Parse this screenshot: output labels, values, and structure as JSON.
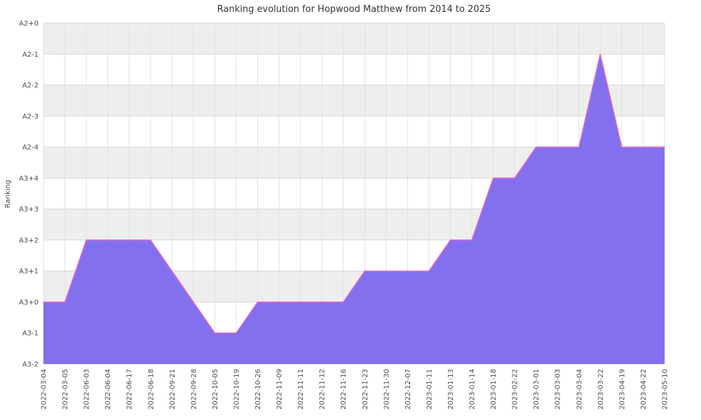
{
  "chart_data": {
    "type": "area",
    "title": "Ranking evolution for Hopwood Matthew from 2014 to 2025",
    "xlabel": "",
    "ylabel": "Ranking",
    "x": [
      "2022-03-04",
      "2022-03-05",
      "2022-06-03",
      "2022-06-04",
      "2022-06-17",
      "2022-06-18",
      "2022-09-21",
      "2022-09-28",
      "2022-10-05",
      "2022-10-19",
      "2022-10-26",
      "2022-11-09",
      "2022-11-11",
      "2022-11-12",
      "2022-11-16",
      "2022-11-23",
      "2022-11-30",
      "2022-12-07",
      "2023-01-11",
      "2023-01-13",
      "2023-01-14",
      "2023-01-18",
      "2023-02-22",
      "2023-03-01",
      "2023-03-03",
      "2023-03-04",
      "2023-03-22",
      "2023-04-19",
      "2023-04-22",
      "2023-05-10"
    ],
    "values": [
      "A3+0",
      "A3+0",
      "A3+2",
      "A3+2",
      "A3+2",
      "A3+2",
      "A3+1",
      "A3+0",
      "A3-1",
      "A3-1",
      "A3+0",
      "A3+0",
      "A3+0",
      "A3+0",
      "A3+0",
      "A3+1",
      "A3+1",
      "A3+1",
      "A3+1",
      "A3+2",
      "A3+2",
      "A3+4",
      "A3+4",
      "A2-4",
      "A2-4",
      "A2-4",
      "A2-1",
      "A2-4",
      "A2-4",
      "A2-4"
    ],
    "y_categories": [
      "A3-2",
      "A3-1",
      "A3+0",
      "A3+1",
      "A3+2",
      "A3+3",
      "A3+4",
      "A2-4",
      "A2-3",
      "A2-2",
      "A2-1",
      "A2+0"
    ],
    "grid": true,
    "legend": false,
    "colors": {
      "fill": "#7b68ee",
      "line": "#e36bc4",
      "band_gray": "#eeeeee",
      "band_white": "#ffffff",
      "hgrid": "#d6d6d6",
      "vgrid": "#e2e2e2",
      "tick_text": "#4d4d4d",
      "title_text": "#333333"
    }
  }
}
